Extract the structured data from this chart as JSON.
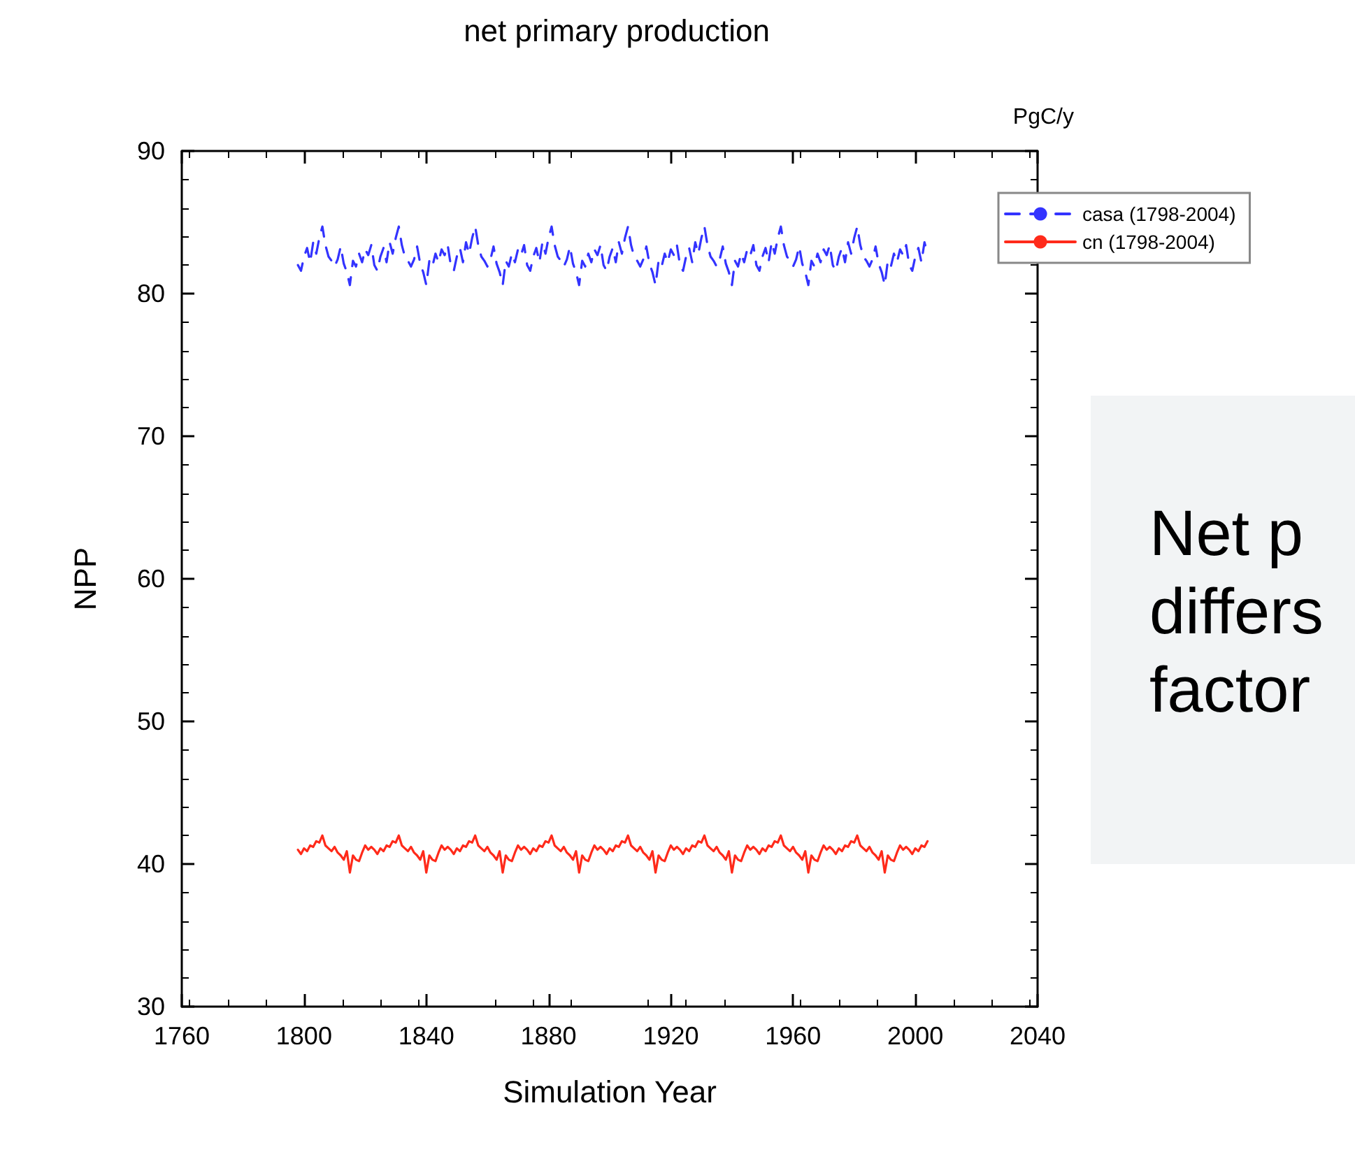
{
  "chart_data": {
    "type": "line",
    "title": "net primary production",
    "xlabel": "Simulation Year",
    "ylabel": "NPP",
    "annotations": [
      "PgC/y",
      "Net p",
      "differs",
      "factor"
    ],
    "xlim": [
      1760,
      2040
    ],
    "xticks": [
      1760,
      1800,
      1840,
      1880,
      1920,
      1960,
      2000,
      2040
    ],
    "ylim": [
      30,
      90
    ],
    "yticks": [
      30,
      40,
      50,
      60,
      70,
      80,
      90
    ],
    "grid": false,
    "legend": "top right",
    "marker": "none",
    "x": [
      1798,
      1799,
      1800,
      1801,
      1802,
      1803,
      1804,
      1805,
      1806,
      1807,
      1808,
      1809,
      1810,
      1811,
      1812,
      1813,
      1814,
      1815,
      1816,
      1817,
      1818,
      1819,
      1820,
      1821,
      1822,
      1823,
      1824,
      1825,
      1826,
      1827,
      1828,
      1829,
      1830,
      1831,
      1832,
      1833,
      1834,
      1835,
      1836,
      1837,
      1838,
      1839,
      1840,
      1841,
      1842,
      1843,
      1844,
      1845,
      1846,
      1847,
      1848,
      1849,
      1850,
      1851,
      1852,
      1853,
      1854,
      1855,
      1856,
      1857,
      1858,
      1859,
      1860,
      1861,
      1862,
      1863,
      1864,
      1865,
      1866,
      1867,
      1868,
      1869,
      1870,
      1871,
      1872,
      1873,
      1874,
      1875,
      1876,
      1877,
      1878,
      1879,
      1880,
      1881,
      1882,
      1883,
      1884,
      1885,
      1886,
      1887,
      1888,
      1889,
      1890,
      1891,
      1892,
      1893,
      1894,
      1895,
      1896,
      1897,
      1898,
      1899,
      1900,
      1901,
      1902,
      1903,
      1904,
      1905,
      1906,
      1907,
      1908,
      1909,
      1910,
      1911,
      1912,
      1913,
      1914,
      1915,
      1916,
      1917,
      1918,
      1919,
      1920,
      1921,
      1922,
      1923,
      1924,
      1925,
      1926,
      1927,
      1928,
      1929,
      1930,
      1931,
      1932,
      1933,
      1934,
      1935,
      1936,
      1937,
      1938,
      1939,
      1940,
      1941,
      1942,
      1943,
      1944,
      1945,
      1946,
      1947,
      1948,
      1949,
      1950,
      1951,
      1952,
      1953,
      1954,
      1955,
      1956,
      1957,
      1958,
      1959,
      1960,
      1961,
      1962,
      1963,
      1964,
      1965,
      1966,
      1967,
      1968,
      1969,
      1970,
      1971,
      1972,
      1973,
      1974,
      1975,
      1976,
      1977,
      1978,
      1979,
      1980,
      1981,
      1982,
      1983,
      1984,
      1985,
      1986,
      1987,
      1988,
      1989,
      1990,
      1991,
      1992,
      1993,
      1994,
      1995,
      1996,
      1997,
      1998,
      1999,
      2000,
      2001,
      2002,
      2003,
      2004
    ],
    "series": [
      {
        "name": "casa (1798-2004)",
        "color": "#3333ff",
        "line_style": "dashed",
        "values": [
          82.0,
          81.6,
          82.6,
          83.2,
          82.2,
          83.6,
          82.8,
          83.9,
          84.7,
          83.4,
          82.6,
          82.3,
          81.9,
          82.4,
          83.3,
          82.1,
          81.5,
          80.6,
          82.3,
          81.9,
          82.8,
          82.2,
          83.1,
          82.7,
          83.4,
          82.0,
          81.6,
          82.6,
          83.2,
          82.2,
          83.6,
          82.8,
          83.9,
          84.7,
          83.4,
          82.6,
          82.3,
          81.9,
          82.4,
          83.3,
          82.1,
          81.5,
          80.6,
          82.3,
          81.9,
          82.8,
          82.2,
          83.1,
          82.7,
          83.4,
          82.0,
          81.6,
          82.6,
          83.2,
          82.2,
          83.6,
          82.8,
          83.9,
          84.7,
          83.4,
          82.6,
          82.3,
          81.9,
          82.4,
          83.3,
          82.1,
          81.5,
          80.6,
          82.3,
          81.9,
          82.8,
          82.2,
          83.1,
          82.7,
          83.4,
          82.0,
          81.6,
          82.6,
          83.2,
          82.2,
          83.6,
          82.8,
          83.9,
          84.7,
          83.4,
          82.6,
          82.3,
          81.9,
          82.4,
          83.3,
          82.1,
          81.5,
          80.6,
          82.3,
          81.9,
          82.8,
          82.2,
          83.1,
          82.7,
          83.4,
          82.0,
          81.6,
          82.6,
          83.2,
          82.2,
          83.6,
          82.8,
          83.9,
          84.7,
          83.4,
          82.6,
          82.3,
          81.9,
          82.4,
          83.3,
          82.1,
          81.5,
          80.6,
          82.3,
          81.9,
          82.8,
          82.2,
          83.1,
          82.7,
          83.4,
          82.0,
          81.6,
          82.6,
          83.2,
          82.2,
          83.6,
          82.8,
          83.9,
          84.7,
          83.4,
          82.6,
          82.3,
          81.9,
          82.4,
          83.3,
          82.1,
          81.5,
          80.6,
          82.3,
          81.9,
          82.8,
          82.2,
          83.1,
          82.7,
          83.4,
          82.0,
          81.6,
          82.6,
          83.2,
          82.2,
          83.6,
          82.8,
          83.9,
          84.7,
          83.4,
          82.6,
          82.3,
          81.9,
          82.4,
          83.3,
          82.1,
          81.5,
          80.6,
          82.3,
          81.9,
          82.8,
          82.2,
          83.1,
          82.7,
          83.4,
          82.0,
          81.6,
          82.6,
          83.2,
          82.2,
          83.6,
          82.8,
          83.9,
          84.7,
          83.4,
          82.6,
          82.3,
          81.9,
          82.4,
          83.3,
          82.1,
          81.5,
          80.6,
          82.3,
          81.9,
          82.8,
          82.2,
          83.1,
          82.7,
          83.4,
          82.0,
          81.6,
          82.6,
          83.2,
          82.2,
          83.6,
          82.8
        ]
      },
      {
        "name": "cn (1798-2004)",
        "color": "#ff2a1a",
        "line_style": "solid",
        "values": [
          41.0,
          40.7,
          41.1,
          40.9,
          41.3,
          41.2,
          41.6,
          41.5,
          42.0,
          41.3,
          41.1,
          40.9,
          41.2,
          40.8,
          40.6,
          40.3,
          40.9,
          39.4,
          40.6,
          40.3,
          40.2,
          40.8,
          41.3,
          41.0,
          41.2,
          41.0,
          40.7,
          41.1,
          40.9,
          41.3,
          41.2,
          41.6,
          41.5,
          42.0,
          41.3,
          41.1,
          40.9,
          41.2,
          40.8,
          40.6,
          40.3,
          40.9,
          39.4,
          40.6,
          40.3,
          40.2,
          40.8,
          41.3,
          41.0,
          41.2,
          41.0,
          40.7,
          41.1,
          40.9,
          41.3,
          41.2,
          41.6,
          41.5,
          42.0,
          41.3,
          41.1,
          40.9,
          41.2,
          40.8,
          40.6,
          40.3,
          40.9,
          39.4,
          40.6,
          40.3,
          40.2,
          40.8,
          41.3,
          41.0,
          41.2,
          41.0,
          40.7,
          41.1,
          40.9,
          41.3,
          41.2,
          41.6,
          41.5,
          42.0,
          41.3,
          41.1,
          40.9,
          41.2,
          40.8,
          40.6,
          40.3,
          40.9,
          39.4,
          40.6,
          40.3,
          40.2,
          40.8,
          41.3,
          41.0,
          41.2,
          41.0,
          40.7,
          41.1,
          40.9,
          41.3,
          41.2,
          41.6,
          41.5,
          42.0,
          41.3,
          41.1,
          40.9,
          41.2,
          40.8,
          40.6,
          40.3,
          40.9,
          39.4,
          40.6,
          40.3,
          40.2,
          40.8,
          41.3,
          41.0,
          41.2,
          41.0,
          40.7,
          41.1,
          40.9,
          41.3,
          41.2,
          41.6,
          41.5,
          42.0,
          41.3,
          41.1,
          40.9,
          41.2,
          40.8,
          40.6,
          40.3,
          40.9,
          39.4,
          40.6,
          40.3,
          40.2,
          40.8,
          41.3,
          41.0,
          41.2,
          41.0,
          40.7,
          41.1,
          40.9,
          41.3,
          41.2,
          41.6,
          41.5,
          42.0,
          41.3,
          41.1,
          40.9,
          41.2,
          40.8,
          40.6,
          40.3,
          40.9,
          39.4,
          40.6,
          40.3,
          40.2,
          40.8,
          41.3,
          41.0,
          41.2,
          41.0,
          40.7,
          41.1,
          40.9,
          41.3,
          41.2,
          41.6,
          41.5,
          42.0,
          41.3,
          41.1,
          40.9,
          41.2,
          40.8,
          40.6,
          40.3,
          40.9,
          39.4,
          40.6,
          40.3,
          40.2,
          40.8,
          41.3,
          41.0,
          41.2,
          41.0,
          40.7,
          41.1,
          40.9,
          41.3,
          41.2,
          41.6
        ]
      }
    ]
  }
}
